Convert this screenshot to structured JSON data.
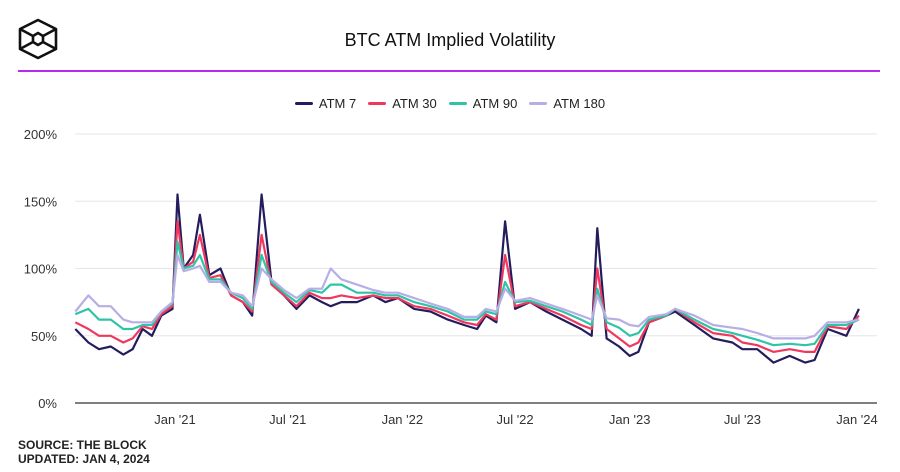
{
  "header": {
    "title": "BTC ATM Implied Volatility",
    "logo": "the-block-cube-logo"
  },
  "footer": {
    "source": "SOURCE: THE BLOCK",
    "updated": "UPDATED: JAN 4, 2024"
  },
  "chart_data": {
    "type": "line",
    "title": "BTC ATM Implied Volatility",
    "xlabel": "",
    "ylabel": "",
    "ylim": [
      0,
      200
    ],
    "y_ticks": [
      {
        "v": 0,
        "label": "0%"
      },
      {
        "v": 50,
        "label": "50%"
      },
      {
        "v": 100,
        "label": "100%"
      },
      {
        "v": 150,
        "label": "150%"
      },
      {
        "v": 200,
        "label": "200%"
      }
    ],
    "x_ticks": [
      {
        "d": "2021-01-01",
        "label": "Jan '21"
      },
      {
        "d": "2021-07-01",
        "label": "Jul '21"
      },
      {
        "d": "2022-01-01",
        "label": "Jan '22"
      },
      {
        "d": "2022-07-01",
        "label": "Jul '22"
      },
      {
        "d": "2023-01-01",
        "label": "Jan '23"
      },
      {
        "d": "2023-07-01",
        "label": "Jul '23"
      },
      {
        "d": "2024-01-01",
        "label": "Jan '24"
      }
    ],
    "grid": true,
    "legend_position": "top-center",
    "x": [
      "2020-07-25",
      "2020-08-15",
      "2020-09-01",
      "2020-09-20",
      "2020-10-10",
      "2020-10-25",
      "2020-11-10",
      "2020-11-25",
      "2020-12-10",
      "2020-12-28",
      "2021-01-05",
      "2021-01-15",
      "2021-01-30",
      "2021-02-10",
      "2021-02-25",
      "2021-03-15",
      "2021-04-01",
      "2021-04-20",
      "2021-05-05",
      "2021-05-20",
      "2021-06-05",
      "2021-06-25",
      "2021-07-15",
      "2021-08-05",
      "2021-08-25",
      "2021-09-08",
      "2021-09-25",
      "2021-10-20",
      "2021-11-15",
      "2021-12-05",
      "2021-12-25",
      "2022-01-20",
      "2022-02-15",
      "2022-03-15",
      "2022-04-10",
      "2022-05-01",
      "2022-05-15",
      "2022-06-01",
      "2022-06-15",
      "2022-07-01",
      "2022-07-25",
      "2022-08-20",
      "2022-09-15",
      "2022-10-15",
      "2022-11-01",
      "2022-11-10",
      "2022-11-25",
      "2022-12-15",
      "2023-01-01",
      "2023-01-15",
      "2023-02-01",
      "2023-03-01",
      "2023-03-15",
      "2023-04-15",
      "2023-05-15",
      "2023-06-15",
      "2023-07-01",
      "2023-07-25",
      "2023-08-20",
      "2023-09-15",
      "2023-10-10",
      "2023-10-25",
      "2023-11-15",
      "2023-12-15",
      "2024-01-04"
    ],
    "series": [
      {
        "name": "ATM 7",
        "color": "#231d5e",
        "values": [
          55,
          45,
          40,
          42,
          36,
          40,
          55,
          50,
          65,
          70,
          155,
          100,
          110,
          140,
          95,
          100,
          80,
          75,
          65,
          155,
          90,
          80,
          70,
          80,
          75,
          72,
          75,
          75,
          80,
          75,
          78,
          70,
          68,
          62,
          58,
          55,
          65,
          60,
          135,
          70,
          75,
          68,
          62,
          55,
          50,
          130,
          48,
          42,
          35,
          38,
          60,
          65,
          68,
          58,
          48,
          45,
          40,
          40,
          30,
          35,
          30,
          32,
          55,
          50,
          70
        ]
      },
      {
        "name": "ATM 30",
        "color": "#f0385f",
        "values": [
          60,
          55,
          50,
          50,
          45,
          48,
          57,
          55,
          66,
          72,
          135,
          100,
          105,
          125,
          93,
          95,
          80,
          75,
          68,
          125,
          88,
          80,
          72,
          82,
          78,
          78,
          80,
          78,
          80,
          78,
          78,
          72,
          70,
          65,
          60,
          58,
          66,
          62,
          110,
          72,
          75,
          70,
          65,
          58,
          55,
          100,
          55,
          48,
          42,
          45,
          60,
          65,
          70,
          60,
          52,
          50,
          45,
          43,
          38,
          40,
          38,
          38,
          57,
          55,
          65
        ]
      },
      {
        "name": "ATM 90",
        "color": "#2fc4a7",
        "values": [
          66,
          70,
          62,
          62,
          55,
          55,
          58,
          58,
          68,
          74,
          120,
          100,
          102,
          110,
          92,
          92,
          82,
          78,
          70,
          110,
          90,
          82,
          75,
          84,
          82,
          88,
          88,
          82,
          82,
          80,
          80,
          75,
          72,
          68,
          62,
          62,
          68,
          66,
          90,
          75,
          76,
          72,
          68,
          62,
          58,
          85,
          60,
          56,
          50,
          52,
          62,
          65,
          70,
          62,
          55,
          52,
          50,
          47,
          43,
          44,
          43,
          44,
          58,
          58,
          62
        ]
      },
      {
        "name": "ATM 180",
        "color": "#b7aee6",
        "values": [
          68,
          80,
          72,
          72,
          62,
          60,
          60,
          60,
          68,
          75,
          110,
          98,
          100,
          102,
          90,
          90,
          82,
          80,
          72,
          100,
          92,
          84,
          78,
          85,
          85,
          100,
          92,
          88,
          84,
          82,
          82,
          78,
          74,
          70,
          64,
          64,
          70,
          68,
          85,
          76,
          78,
          74,
          70,
          65,
          62,
          80,
          63,
          62,
          58,
          57,
          64,
          66,
          70,
          65,
          58,
          56,
          55,
          52,
          48,
          48,
          48,
          50,
          60,
          60,
          62
        ]
      }
    ]
  }
}
